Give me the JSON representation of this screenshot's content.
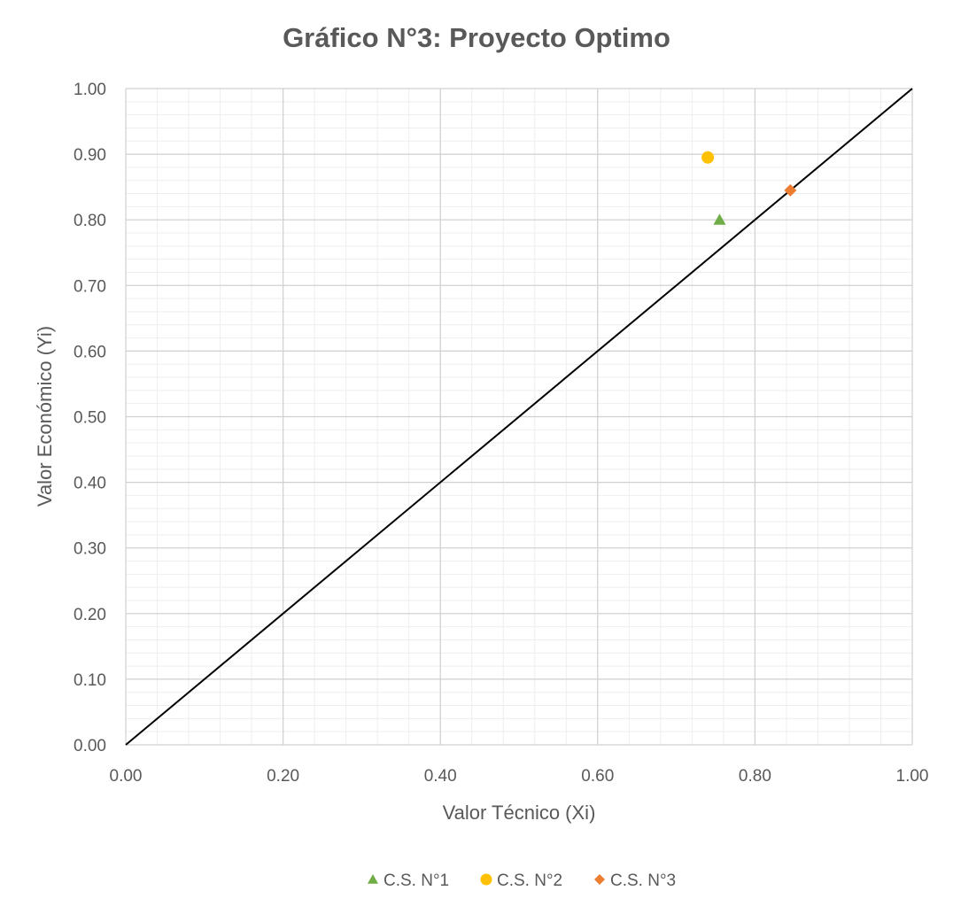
{
  "chart_data": {
    "type": "scatter",
    "title": "Gráfico N°3: Proyecto Optimo",
    "xlabel": "Valor Técnico (Xi)",
    "ylabel": "Valor Económico (Yi)",
    "xlim": [
      0,
      1
    ],
    "ylim": [
      0,
      1
    ],
    "x_ticks": [
      "0.00",
      "0.20",
      "0.40",
      "0.60",
      "0.80",
      "1.00"
    ],
    "y_ticks": [
      "0.00",
      "0.10",
      "0.20",
      "0.30",
      "0.40",
      "0.50",
      "0.60",
      "0.70",
      "0.80",
      "0.90",
      "1.00"
    ],
    "grid": true,
    "legend_position": "bottom",
    "reference_line": {
      "x": [
        0,
        1
      ],
      "y": [
        0,
        1
      ],
      "color": "#000000"
    },
    "series": [
      {
        "name": "C.S. N°1",
        "marker": "triangle",
        "color": "#70AD47",
        "x": [
          0.755
        ],
        "y": [
          0.8
        ]
      },
      {
        "name": "C.S. N°2",
        "marker": "circle",
        "color": "#FFC000",
        "x": [
          0.74
        ],
        "y": [
          0.895
        ]
      },
      {
        "name": "C.S. N°3",
        "marker": "diamond",
        "color": "#ED7D31",
        "x": [
          0.845
        ],
        "y": [
          0.845
        ]
      }
    ]
  }
}
